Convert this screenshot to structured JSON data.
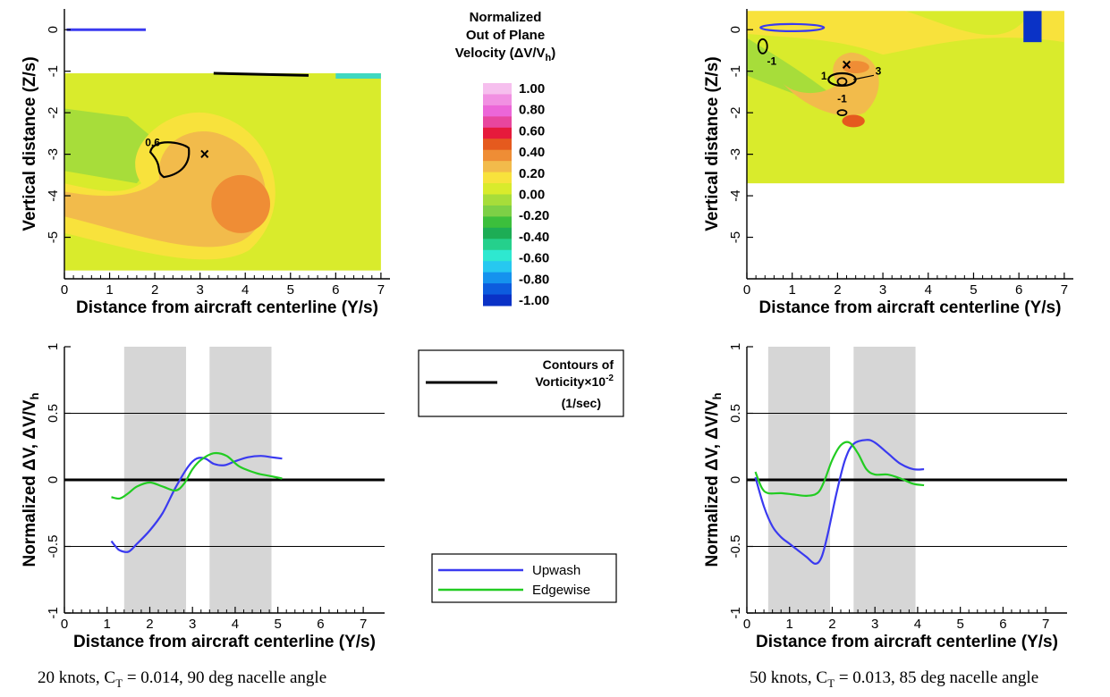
{
  "colorbar": {
    "title_lines": [
      "Normalized",
      "Out of Plane",
      "Velocity (ΔV/V",
      "h",
      ")"
    ],
    "levels": [
      "1.00",
      "0.80",
      "0.60",
      "0.40",
      "0.20",
      "0.00",
      "-0.20",
      "-0.40",
      "-0.60",
      "-0.80",
      "-1.00"
    ],
    "colors": [
      "#f6bfee",
      "#f190e2",
      "#ec66d8",
      "#e8469e",
      "#e61a3c",
      "#e55a1e",
      "#ef8d35",
      "#f2bb4b",
      "#f8e23c",
      "#d9eb2c",
      "#a7dd3a",
      "#7dd046",
      "#3cbf3c",
      "#1dad55",
      "#25d08c",
      "#2ee8d0",
      "#27c8f0",
      "#1592ee",
      "#0d5cde",
      "#0a32c6"
    ]
  },
  "vorticity_legend": {
    "line1": "Contours of",
    "line2": "Vorticity×10",
    "exp": "-2",
    "line3": "(1/sec)",
    "color": "#000000"
  },
  "series_legend": {
    "entries": [
      {
        "name": "Upwash",
        "color": "#3a3af0"
      },
      {
        "name": "Edgewise",
        "color": "#22cc22"
      }
    ]
  },
  "captions": {
    "left": "20 knots, C",
    "left_sub": "T",
    "left_rest": " = 0.014, 90 deg nacelle angle",
    "right": "50 knots, C",
    "right_sub": "T",
    "right_rest": " = 0.013, 85 deg nacelle angle"
  },
  "chart_data": [
    {
      "type": "heatmap",
      "panel": "top-left",
      "xlabel": "Distance from aircraft centerline (Y/s)",
      "ylabel": "Vertical distance (Z/s)",
      "xlim": [
        0,
        7.2
      ],
      "ylim": [
        -6,
        0.5
      ],
      "xticks": [
        "0",
        "1",
        "2",
        "3",
        "4",
        "5",
        "6",
        "7"
      ],
      "yticks": [
        "0",
        "-1",
        "-2",
        "-3",
        "-4",
        "-5"
      ],
      "contour_labels": [
        {
          "text": "0.6",
          "x": 1.95,
          "y": -2.8
        }
      ],
      "vortex_markers": [
        {
          "x": 3.1,
          "y": -3.0
        }
      ]
    },
    {
      "type": "heatmap",
      "panel": "top-right",
      "xlabel": "Distance from aircraft centerline (Y/s)",
      "ylabel": "Vertical distance (Z/s)",
      "xlim": [
        0,
        7.2
      ],
      "ylim": [
        -6,
        0.5
      ],
      "xticks": [
        "0",
        "1",
        "2",
        "3",
        "4",
        "5",
        "6",
        "7"
      ],
      "yticks": [
        "0",
        "-1",
        "-2",
        "-3",
        "-4",
        "-5"
      ],
      "contour_labels": [
        {
          "text": "-1",
          "x": 0.55,
          "y": -0.85
        },
        {
          "text": "1",
          "x": 1.7,
          "y": -1.2
        },
        {
          "text": "3",
          "x": 2.9,
          "y": -1.08
        },
        {
          "text": "-1",
          "x": 2.1,
          "y": -1.75
        }
      ],
      "vortex_markers": [
        {
          "x": 2.2,
          "y": -0.85
        }
      ]
    },
    {
      "type": "line",
      "panel": "bottom-left",
      "xlabel": "Distance from aircraft centerline (Y/s)",
      "ylabel": "Normalized ΔV, ΔV/V",
      "ylabel_sub": "h",
      "xlim": [
        0,
        7.5
      ],
      "ylim": [
        -1,
        1
      ],
      "xticks": [
        "0",
        "1",
        "2",
        "3",
        "4",
        "5",
        "6",
        "7"
      ],
      "yticks": [
        "-1",
        "-0.5",
        "0",
        "0.5",
        "1"
      ],
      "shaded_bands": [
        [
          1.4,
          2.85
        ],
        [
          3.4,
          4.85
        ]
      ],
      "series": [
        {
          "name": "Upwash",
          "x": [
            1.1,
            1.2,
            1.3,
            1.5,
            1.7,
            2.0,
            2.3,
            2.6,
            2.9,
            3.1,
            3.3,
            3.5,
            3.75,
            4.0,
            4.3,
            4.6,
            4.85,
            5.1
          ],
          "y": [
            -0.46,
            -0.5,
            -0.53,
            -0.54,
            -0.48,
            -0.38,
            -0.25,
            -0.06,
            0.1,
            0.16,
            0.16,
            0.12,
            0.11,
            0.14,
            0.17,
            0.18,
            0.17,
            0.16
          ]
        },
        {
          "name": "Edgewise",
          "x": [
            1.1,
            1.3,
            1.5,
            1.7,
            2.0,
            2.3,
            2.6,
            2.8,
            3.0,
            3.2,
            3.5,
            3.8,
            4.1,
            4.5,
            4.8,
            5.1
          ],
          "y": [
            -0.13,
            -0.14,
            -0.1,
            -0.05,
            -0.02,
            -0.05,
            -0.08,
            -0.03,
            0.08,
            0.15,
            0.2,
            0.18,
            0.1,
            0.05,
            0.03,
            0.01
          ]
        }
      ]
    },
    {
      "type": "line",
      "panel": "bottom-right",
      "xlabel": "Distance from aircraft centerline (Y/s)",
      "ylabel": "Normalized ΔV, ΔV/V",
      "ylabel_sub": "h",
      "xlim": [
        0,
        7.5
      ],
      "ylim": [
        -1,
        1
      ],
      "xticks": [
        "0",
        "1",
        "2",
        "3",
        "4",
        "5",
        "6",
        "7"
      ],
      "yticks": [
        "-1",
        "-0.5",
        "0",
        "0.5",
        "1"
      ],
      "shaded_bands": [
        [
          0.5,
          1.95
        ],
        [
          2.5,
          3.95
        ]
      ],
      "series": [
        {
          "name": "Upwash",
          "x": [
            0.2,
            0.4,
            0.6,
            0.8,
            1.0,
            1.2,
            1.4,
            1.6,
            1.75,
            1.9,
            2.1,
            2.3,
            2.5,
            2.8,
            3.0,
            3.3,
            3.6,
            3.9,
            4.15
          ],
          "y": [
            0.02,
            -0.2,
            -0.35,
            -0.43,
            -0.48,
            -0.53,
            -0.58,
            -0.63,
            -0.58,
            -0.4,
            -0.1,
            0.15,
            0.27,
            0.3,
            0.28,
            0.2,
            0.12,
            0.08,
            0.08
          ]
        },
        {
          "name": "Edgewise",
          "x": [
            0.2,
            0.35,
            0.5,
            0.8,
            1.1,
            1.4,
            1.65,
            1.8,
            2.0,
            2.2,
            2.4,
            2.6,
            2.8,
            3.0,
            3.3,
            3.6,
            3.9,
            4.15
          ],
          "y": [
            0.06,
            -0.06,
            -0.1,
            -0.1,
            -0.11,
            -0.12,
            -0.1,
            -0.02,
            0.15,
            0.26,
            0.28,
            0.2,
            0.08,
            0.04,
            0.04,
            0.01,
            -0.03,
            -0.04
          ]
        }
      ]
    }
  ]
}
